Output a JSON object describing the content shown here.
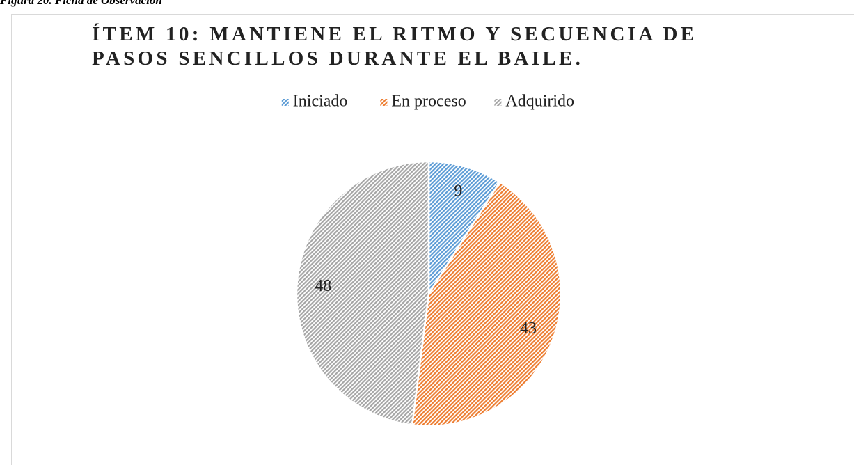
{
  "caption": "Figura 20. Ficha de Observación",
  "chart_data": {
    "type": "pie",
    "title": "ÍTEM 10: MANTIENE EL RITMO Y SECUENCIA DE PASOS SENCILLOS DURANTE EL BAILE.",
    "categories": [
      "Iniciado",
      "En proceso",
      "Adquirido"
    ],
    "values": [
      9,
      43,
      48
    ],
    "colors": [
      "#5b9bd5",
      "#ed7d31",
      "#a5a5a5"
    ],
    "legend": "top"
  }
}
